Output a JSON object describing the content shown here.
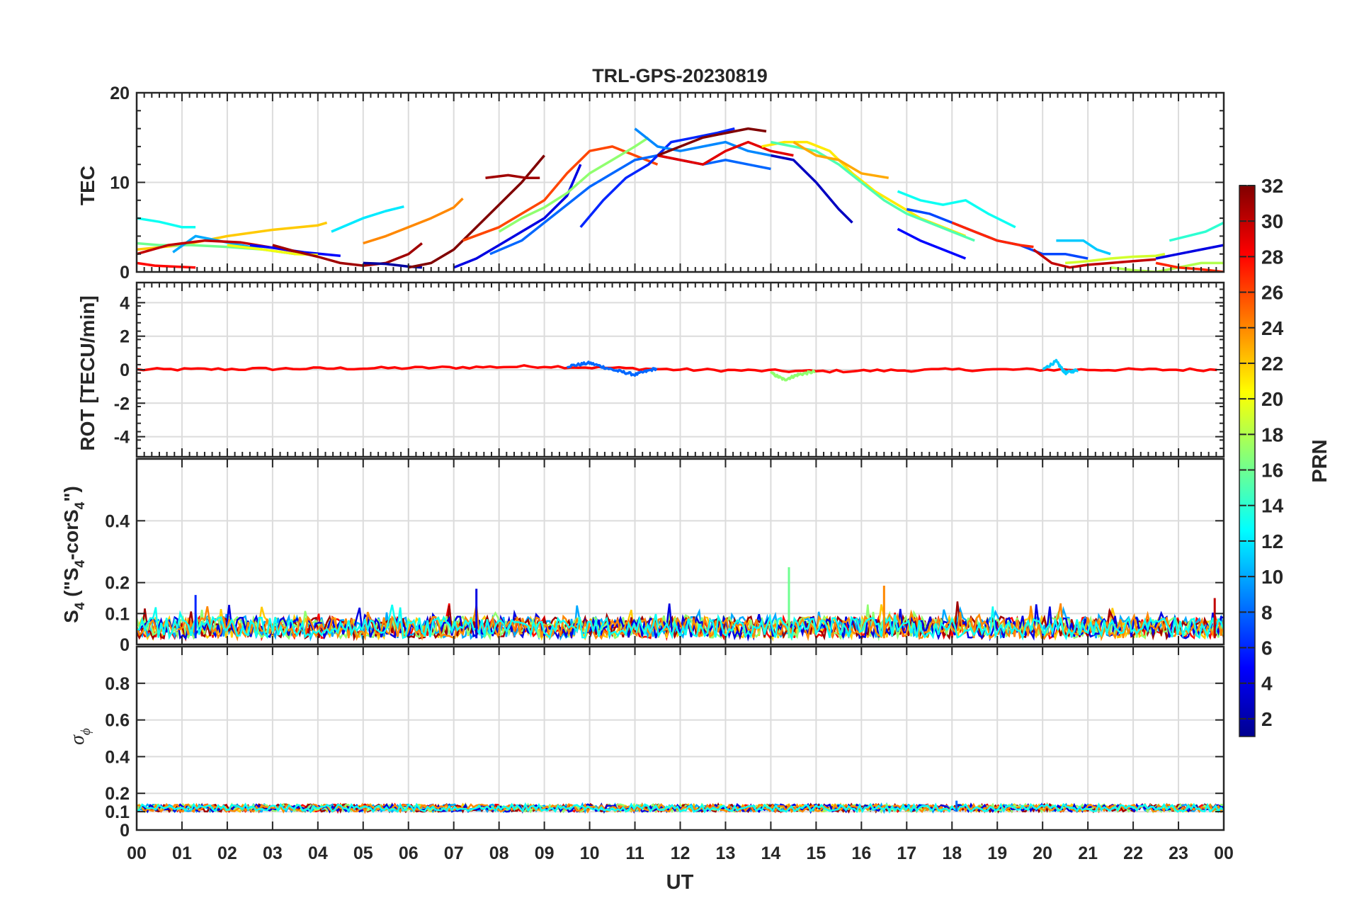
{
  "chart_data": {
    "type": "line",
    "title": "TRL-GPS-20230819",
    "xlabel": "UT",
    "x_tick_labels": [
      "00",
      "01",
      "02",
      "03",
      "04",
      "05",
      "06",
      "07",
      "08",
      "09",
      "10",
      "11",
      "12",
      "13",
      "14",
      "15",
      "16",
      "17",
      "18",
      "19",
      "20",
      "21",
      "22",
      "23",
      "00"
    ],
    "xlim_hours": [
      0,
      24
    ],
    "colorbar": {
      "label": "PRN",
      "range": [
        1,
        32
      ],
      "tick_labels": [
        "2",
        "4",
        "6",
        "8",
        "10",
        "12",
        "14",
        "16",
        "18",
        "20",
        "22",
        "24",
        "26",
        "28",
        "30",
        "32"
      ],
      "colormap": "jet"
    },
    "panels": [
      {
        "id": "tec",
        "ylabel": "TEC",
        "ylim": [
          0,
          20
        ],
        "ytick_labels": [
          "0",
          "10",
          "20"
        ],
        "series": [
          {
            "prn": 13,
            "name": "PRN 13",
            "x": [
              0.0,
              0.5,
              1.0,
              1.3
            ],
            "values": [
              6.0,
              5.6,
              5.0,
              5.0
            ]
          },
          {
            "prn": 22,
            "name": "PRN 22",
            "x": [
              0.0,
              1.0,
              2.0,
              3.0,
              4.0,
              4.2
            ],
            "values": [
              2.5,
              3.0,
              4.0,
              4.7,
              5.2,
              5.5
            ]
          },
          {
            "prn": 28,
            "name": "PRN 28",
            "x": [
              0.0,
              0.4,
              0.8,
              1.3
            ],
            "values": [
              1.0,
              0.7,
              0.6,
              0.5
            ]
          },
          {
            "prn": 16,
            "name": "PRN 16",
            "x": [
              0.0,
              0.5,
              1.2,
              2.0,
              2.8
            ],
            "values": [
              3.2,
              3.0,
              3.0,
              2.8,
              2.5
            ]
          },
          {
            "prn": 10,
            "name": "PRN 10",
            "x": [
              0.8,
              1.3,
              2.0,
              2.8,
              3.5,
              4.0
            ],
            "values": [
              2.2,
              4.0,
              3.3,
              2.5,
              2.0,
              2.0
            ]
          },
          {
            "prn": 30,
            "name": "PRN 30",
            "x": [
              0.0,
              0.7,
              1.5,
              2.3,
              3.0,
              3.6,
              4.0
            ],
            "values": [
              2.0,
              3.0,
              3.5,
              3.3,
              2.7,
              2.2,
              2.0
            ]
          },
          {
            "prn": 5,
            "name": "PRN 5",
            "x": [
              2.5,
              3.0,
              3.7,
              4.5
            ],
            "values": [
              3.0,
              2.7,
              2.2,
              1.8
            ]
          },
          {
            "prn": 20,
            "name": "PRN 20",
            "x": [
              2.0,
              2.8,
              3.5,
              4.0
            ],
            "values": [
              3.0,
              2.5,
              2.0,
              1.9
            ]
          },
          {
            "prn": 12,
            "name": "PRN 12",
            "x": [
              4.3,
              5.0,
              5.5,
              5.9
            ],
            "values": [
              4.5,
              6.0,
              6.8,
              7.3
            ]
          },
          {
            "prn": 24,
            "name": "PRN 24",
            "x": [
              5.0,
              5.5,
              6.0,
              6.5,
              7.0,
              7.2
            ],
            "values": [
              3.2,
              4.0,
              5.0,
              6.0,
              7.2,
              8.2
            ]
          },
          {
            "prn": 31,
            "name": "PRN 31",
            "x": [
              3.0,
              3.5,
              4.0,
              4.5,
              5.0,
              5.5,
              6.0,
              6.3
            ],
            "values": [
              3.0,
              2.3,
              1.7,
              1.0,
              0.7,
              1.0,
              2.0,
              3.2
            ]
          },
          {
            "prn": 2,
            "name": "PRN 2",
            "x": [
              5.0,
              5.5,
              6.0,
              6.3
            ],
            "values": [
              1.0,
              0.9,
              0.6,
              0.5
            ]
          },
          {
            "prn": 32,
            "name": "PRN 32",
            "x": [
              6.0,
              6.5,
              7.0,
              7.5,
              8.0,
              8.5,
              9.0
            ],
            "values": [
              0.5,
              1.0,
              2.5,
              5.0,
              7.5,
              10.0,
              13.0
            ]
          },
          {
            "prn": 31,
            "name": "PRN 31b",
            "x": [
              7.7,
              8.2,
              8.6,
              8.9
            ],
            "values": [
              10.5,
              10.8,
              10.5,
              10.5
            ]
          },
          {
            "prn": 26,
            "name": "PRN 26",
            "x": [
              7.2,
              8.0,
              8.5,
              9.0,
              9.5,
              10.0,
              10.5,
              11.0,
              11.5
            ],
            "values": [
              3.5,
              5.0,
              6.5,
              8.0,
              11.0,
              13.5,
              14.0,
              13.0,
              12.0
            ]
          },
          {
            "prn": 8,
            "name": "PRN 8",
            "x": [
              7.8,
              8.5,
              9.0,
              9.5,
              10.0,
              10.5,
              11.0,
              11.5,
              12.0,
              12.5,
              13.0,
              13.5,
              14.0
            ],
            "values": [
              2.0,
              3.5,
              5.5,
              7.5,
              9.5,
              11.0,
              12.5,
              13.0,
              12.5,
              12.0,
              12.5,
              12.0,
              11.5
            ]
          },
          {
            "prn": 4,
            "name": "PRN 4",
            "x": [
              7.0,
              7.5,
              8.0,
              8.5,
              9.0,
              9.5,
              9.8
            ],
            "values": [
              0.5,
              1.5,
              3.0,
              4.5,
              6.0,
              8.5,
              12.0
            ]
          },
          {
            "prn": 17,
            "name": "PRN 17",
            "x": [
              8.0,
              8.5,
              9.0,
              9.5,
              10.0,
              10.5,
              11.0,
              11.3
            ],
            "values": [
              4.5,
              6.0,
              7.2,
              8.8,
              11.0,
              12.5,
              14.0,
              15.0
            ]
          },
          {
            "prn": 6,
            "name": "PRN 6",
            "x": [
              9.8,
              10.3,
              10.8,
              11.3,
              11.8,
              12.3,
              12.8,
              13.2
            ],
            "values": [
              5.0,
              8.0,
              10.5,
              12.0,
              14.5,
              15.0,
              15.5,
              16.0
            ]
          },
          {
            "prn": 9,
            "name": "PRN 9",
            "x": [
              11.0,
              11.5,
              12.0,
              12.5,
              13.0,
              13.5,
              14.0
            ],
            "values": [
              16.0,
              14.0,
              13.5,
              14.0,
              14.5,
              13.5,
              13.0
            ]
          },
          {
            "prn": 29,
            "name": "PRN 29",
            "x": [
              11.5,
              12.0,
              12.5,
              13.0,
              13.5,
              14.0,
              14.5
            ],
            "values": [
              13.0,
              12.5,
              12.0,
              13.5,
              14.5,
              13.5,
              13.0
            ]
          },
          {
            "prn": 32,
            "name": "PRN 32b",
            "x": [
              11.5,
              12.0,
              12.5,
              13.0,
              13.5,
              13.9
            ],
            "values": [
              13.0,
              14.0,
              15.0,
              15.5,
              16.0,
              15.7
            ]
          },
          {
            "prn": 3,
            "name": "PRN 3",
            "x": [
              14.0,
              14.5,
              15.0,
              15.5,
              15.8
            ],
            "values": [
              13.0,
              12.5,
              10.0,
              7.0,
              5.5
            ]
          },
          {
            "prn": 21,
            "name": "PRN 21",
            "x": [
              13.8,
              14.3,
              14.8,
              15.3,
              15.8,
              16.3,
              16.8,
              17.3,
              17.8,
              18.3
            ],
            "values": [
              14.0,
              14.5,
              14.5,
              13.5,
              11.0,
              9.0,
              7.5,
              6.0,
              5.0,
              4.0
            ]
          },
          {
            "prn": 15,
            "name": "PRN 15",
            "x": [
              14.0,
              14.5,
              15.0,
              15.5,
              16.0,
              16.5,
              17.0,
              17.5,
              18.0,
              18.5
            ],
            "values": [
              14.5,
              14.0,
              13.5,
              12.0,
              10.0,
              8.0,
              6.5,
              5.5,
              4.5,
              3.5
            ]
          },
          {
            "prn": 23,
            "name": "PRN 23",
            "x": [
              14.5,
              15.0,
              15.5,
              16.0,
              16.6
            ],
            "values": [
              14.5,
              13.0,
              12.5,
              11.0,
              10.5
            ]
          },
          {
            "prn": 13,
            "name": "PRN 13b",
            "x": [
              16.8,
              17.3,
              17.8,
              18.3,
              18.8,
              19.4
            ],
            "values": [
              9.0,
              8.0,
              7.5,
              8.0,
              6.5,
              5.0
            ]
          },
          {
            "prn": 5,
            "name": "PRN 5b",
            "x": [
              16.8,
              17.3,
              17.8,
              18.3
            ],
            "values": [
              4.8,
              3.5,
              2.5,
              1.5
            ]
          },
          {
            "prn": 7,
            "name": "PRN 7",
            "x": [
              17.0,
              17.5,
              18.0,
              18.5,
              19.0,
              19.5,
              20.0,
              20.5,
              21.0
            ],
            "values": [
              7.0,
              6.5,
              5.5,
              4.5,
              3.5,
              3.0,
              2.0,
              2.0,
              1.5
            ]
          },
          {
            "prn": 27,
            "name": "PRN 27",
            "x": [
              18.0,
              18.5,
              19.0,
              19.5,
              19.8
            ],
            "values": [
              5.5,
              4.5,
              3.5,
              3.0,
              2.8
            ]
          },
          {
            "prn": 11,
            "name": "PRN 11",
            "x": [
              20.3,
              20.6,
              20.9,
              21.2,
              21.5
            ],
            "values": [
              3.5,
              3.5,
              3.5,
              2.5,
              2.0
            ]
          },
          {
            "prn": 30,
            "name": "PRN 30b",
            "x": [
              19.8,
              20.2,
              20.6,
              21.0,
              21.5,
              22.0,
              22.5
            ],
            "values": [
              2.5,
              1.0,
              0.5,
              0.8,
              1.0,
              1.2,
              1.4
            ]
          },
          {
            "prn": 19,
            "name": "PRN 19",
            "x": [
              20.5,
              21.0,
              21.5,
              22.0,
              22.5,
              22.7
            ],
            "values": [
              1.0,
              1.2,
              1.5,
              1.7,
              1.8,
              2.0
            ]
          },
          {
            "prn": 14,
            "name": "PRN 14",
            "x": [
              22.8,
              23.2,
              23.6,
              24.0
            ],
            "values": [
              3.5,
              4.0,
              4.5,
              5.5
            ]
          },
          {
            "prn": 4,
            "name": "PRN 4b",
            "x": [
              22.5,
              23.0,
              23.5,
              24.0
            ],
            "values": [
              1.5,
              2.0,
              2.5,
              3.0
            ]
          },
          {
            "prn": 18,
            "name": "PRN 18",
            "x": [
              21.5,
              22.0,
              22.5,
              23.0,
              23.5,
              24.0
            ],
            "values": [
              0.5,
              0.2,
              0.0,
              0.5,
              1.0,
              1.0
            ]
          },
          {
            "prn": 27,
            "name": "PRN 27b",
            "x": [
              22.5,
              23.0,
              23.5,
              24.0
            ],
            "values": [
              1.0,
              0.5,
              0.3,
              0.0
            ]
          }
        ]
      },
      {
        "id": "rot",
        "ylabel": "ROT [TECU/min]",
        "ylim": [
          -5.2,
          5.2
        ],
        "ytick_labels": [
          "-4",
          "-2",
          "0",
          "2",
          "4"
        ],
        "series": [
          {
            "prn": 28,
            "name": "ROT PRN 28",
            "x": [
              0,
              3,
              6,
              9,
              12,
              15,
              18,
              21,
              24
            ],
            "values": [
              0.0,
              0.05,
              0.1,
              0.2,
              0.0,
              -0.1,
              0.0,
              0.0,
              0.0
            ]
          },
          {
            "prn": 8,
            "name": "ROT PRN 8",
            "x": [
              9.5,
              10,
              10.5,
              11,
              11.5
            ],
            "values": [
              0.2,
              0.4,
              0.0,
              -0.3,
              0.1
            ]
          },
          {
            "prn": 17,
            "name": "ROT PRN 17",
            "x": [
              14.0,
              14.3,
              14.6,
              15.0
            ],
            "values": [
              -0.2,
              -0.6,
              -0.3,
              -0.1
            ]
          },
          {
            "prn": 11,
            "name": "ROT PRN 11",
            "x": [
              20.0,
              20.3,
              20.5,
              20.8
            ],
            "values": [
              0.0,
              0.5,
              -0.2,
              0.0
            ]
          }
        ]
      },
      {
        "id": "s4",
        "ylabel_main": "S",
        "ylabel_sub1": "4",
        "ylabel_mid": " (\"S",
        "ylabel_sub2": "4",
        "ylabel_end": "-corS",
        "ylabel_sub3": "4",
        "ylabel_close": "\")",
        "ylim": [
          0,
          0.6
        ],
        "ytick_labels": [
          "0",
          "0.1",
          "0.2",
          "0.4"
        ],
        "baseline_values": [
          0.02,
          0.09
        ],
        "peaks": [
          {
            "prn": 16,
            "x": 14.4,
            "value": 0.25
          },
          {
            "prn": 24,
            "x": 16.5,
            "value": 0.19
          },
          {
            "prn": 4,
            "x": 7.5,
            "value": 0.18
          },
          {
            "prn": 6,
            "x": 1.3,
            "value": 0.16
          },
          {
            "prn": 30,
            "x": 23.8,
            "value": 0.15
          }
        ]
      },
      {
        "id": "sigma",
        "ylabel_main": "σ",
        "ylabel_sub": "ϕ",
        "ylim": [
          0,
          1.0
        ],
        "ytick_labels": [
          "0",
          "0.1",
          "0.2",
          "0.4",
          "0.6",
          "0.8"
        ],
        "baseline_values": [
          0.1,
          0.14
        ],
        "peaks": [
          {
            "prn": 8,
            "x": 18.1,
            "value": 0.16
          }
        ]
      }
    ]
  }
}
